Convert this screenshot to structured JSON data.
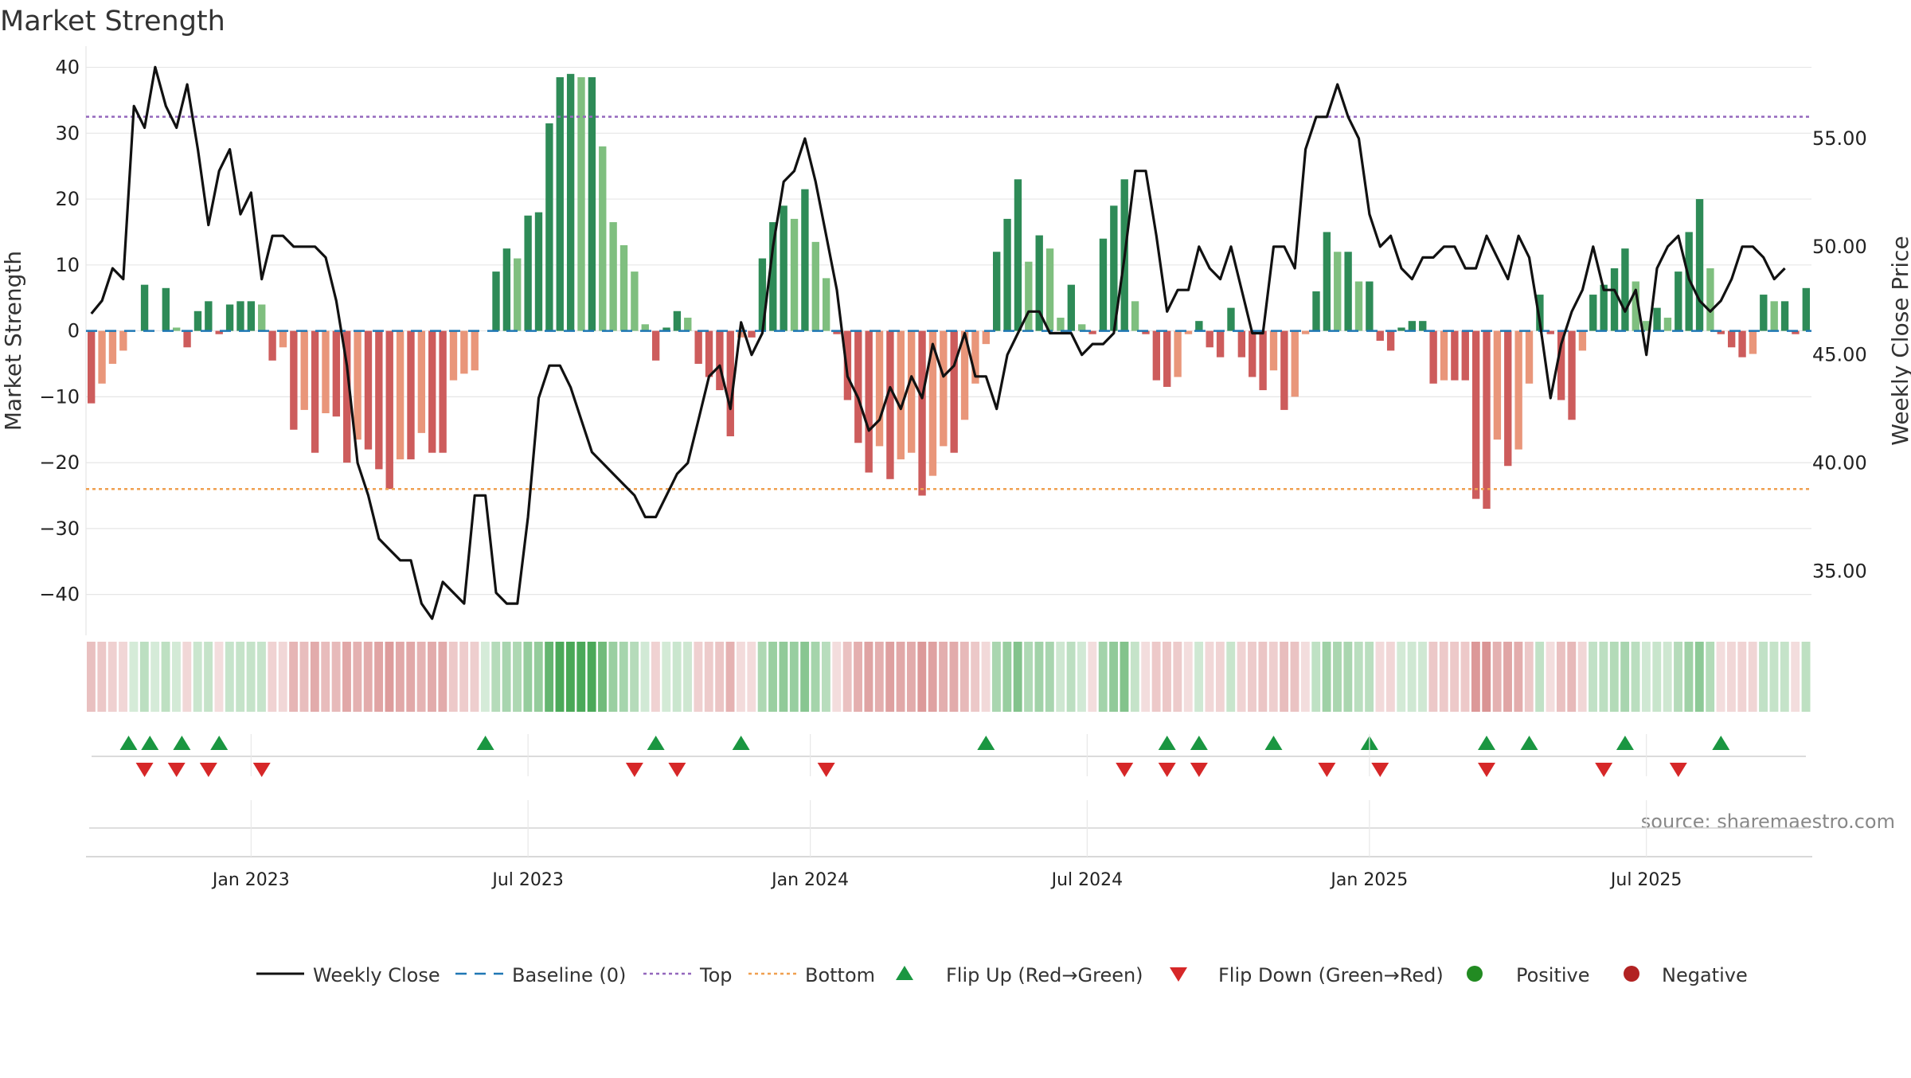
{
  "title": "Market Strength",
  "left_axis_label": "Market Strength",
  "right_axis_label": "Weekly Close Price",
  "source_text": "source: sharemaestro.com",
  "colors": {
    "positive_dark": "#2e8b57",
    "positive_light": "#7fbf7f",
    "negative_dark": "#cd5c5c",
    "negative_light": "#e9967a",
    "close_line": "#111111",
    "baseline": "#1f77b4",
    "top": "#9467bd",
    "bottom": "#f0a050",
    "flip_up": "#1a9641",
    "flip_down": "#d62728",
    "positive_dot": "#228b22",
    "negative_dot": "#b22222",
    "grid": "#e6e6e6",
    "tick": "#222222",
    "source": "#888888"
  },
  "legend": [
    {
      "label": "Weekly Close",
      "kind": "line"
    },
    {
      "label": "Baseline (0)",
      "kind": "dash"
    },
    {
      "label": "Top",
      "kind": "dot-purple"
    },
    {
      "label": "Bottom",
      "kind": "dot-orange"
    },
    {
      "label": "Flip Up (Red→Green)",
      "kind": "tri-up"
    },
    {
      "label": "Flip Down (Green→Red)",
      "kind": "tri-down"
    },
    {
      "label": "Positive",
      "kind": "circle-green"
    },
    {
      "label": "Negative",
      "kind": "circle-red"
    }
  ],
  "chart_data": {
    "type": "bar+line",
    "frequency": "weekly",
    "start_date": "2022-09-19",
    "strength_ylim": [
      -45,
      42
    ],
    "strength_ticks": [
      40,
      30,
      20,
      10,
      0,
      -10,
      -20,
      -30,
      -40
    ],
    "strength_tick_labels": [
      "40",
      "30",
      "20",
      "10",
      "0",
      "−10",
      "−20",
      "−30",
      "−40"
    ],
    "price_ylim": [
      32.4,
      58.9
    ],
    "price_ticks": [
      55,
      50,
      45,
      40,
      35
    ],
    "price_tick_labels": [
      "55.00",
      "50.00",
      "45.00",
      "40.00",
      "35.00"
    ],
    "top_level": 32.5,
    "bottom_level": -24,
    "x_tick_labels": [
      "Jan 2023",
      "Jul 2023",
      "Jan 2024",
      "Jul 2024",
      "Jan 2025",
      "Jul 2025"
    ],
    "x_tick_weeks": [
      15,
      41,
      67.5,
      93.5,
      120,
      146
    ],
    "strength": [
      -11,
      -8,
      -5,
      -3,
      0,
      7,
      0,
      6.5,
      0.5,
      -2.5,
      3,
      4.5,
      -0.5,
      4,
      4.5,
      4.5,
      4,
      -4.5,
      -2.5,
      -15,
      -12,
      -18.5,
      -12.5,
      -13,
      -20,
      -16.5,
      -18,
      -21,
      -24,
      -19.5,
      -19.5,
      -15.5,
      -18.5,
      -18.5,
      -7.5,
      -6.5,
      -6,
      0,
      9,
      12.5,
      11,
      17.5,
      18,
      31.5,
      38.5,
      39,
      38.5,
      38.5,
      28,
      16.5,
      13,
      9,
      1,
      -4.5,
      0.5,
      3,
      2,
      -5,
      -7,
      -9,
      -16,
      -1,
      -1,
      11,
      16.5,
      19,
      17,
      21.5,
      13.5,
      8,
      -0.5,
      -10.5,
      -17,
      -21.5,
      -17.5,
      -22.5,
      -19.5,
      -18.5,
      -25,
      -22,
      -17.5,
      -18.5,
      -13.5,
      -8,
      -2,
      12,
      17,
      23,
      10.5,
      14.5,
      12.5,
      2,
      7,
      1,
      -0.5,
      14,
      19,
      23,
      4.5,
      -0.5,
      -7.5,
      -8.5,
      -7,
      -0.5,
      1.5,
      -2.5,
      -4,
      3.5,
      -4,
      -7,
      -9,
      -6,
      -12,
      -10,
      -0.5,
      6,
      15,
      12,
      12,
      7.5,
      7.5,
      -1.5,
      -3,
      0.5,
      1.5,
      1.5,
      -8,
      -7.5,
      -7.5,
      -7.5,
      -25.5,
      -27,
      -16.5,
      -20.5,
      -18,
      -8,
      5.5,
      -0.5,
      -10.5,
      -13.5,
      -3,
      5.5,
      7,
      9.5,
      12.5,
      7.5,
      1.5,
      3.5,
      2,
      9,
      15,
      20,
      9.5,
      -0.5,
      -2.5,
      -4,
      -3.5,
      5.5,
      4.5,
      4.5,
      -0.5,
      6.5
    ],
    "weekly_close": [
      46.9,
      47.5,
      49,
      48.5,
      56.5,
      55.5,
      58.3,
      56.5,
      55.5,
      57.5,
      54.5,
      51,
      53.5,
      54.5,
      51.5,
      52.5,
      48.5,
      50.5,
      50.5,
      50,
      50,
      50,
      49.5,
      47.5,
      44.5,
      40,
      38.5,
      36.5,
      36,
      35.5,
      35.5,
      33.5,
      32.8,
      34.5,
      34,
      33.5,
      38.5,
      38.5,
      34,
      33.5,
      33.5,
      37.5,
      43,
      44.5,
      44.5,
      43.5,
      42,
      40.5,
      40,
      39.5,
      39,
      38.5,
      37.5,
      37.5,
      38.5,
      39.5,
      40,
      42,
      44,
      44.5,
      42.5,
      46.5,
      45,
      46,
      50,
      53,
      53.5,
      55,
      53,
      50.5,
      48,
      44,
      43,
      41.5,
      42,
      43.5,
      42.5,
      44,
      43,
      45.5,
      44,
      44.5,
      46,
      44,
      44,
      42.5,
      45,
      46,
      47,
      47,
      46,
      46,
      46,
      45,
      45.5,
      45.5,
      46,
      49.5,
      53.5,
      53.5,
      50.5,
      47,
      48,
      48,
      50,
      49,
      48.5,
      50,
      48,
      46,
      46,
      50,
      50,
      49,
      54.5,
      56,
      56,
      57.5,
      56,
      55,
      51.5,
      50,
      50.5,
      49,
      48.5,
      49.5,
      49.5,
      50,
      50,
      49,
      49,
      50.5,
      49.5,
      48.5,
      50.5,
      49.5,
      46.5,
      43,
      45.5,
      47,
      48,
      50,
      48,
      48,
      47,
      48,
      45,
      49,
      50,
      50.5,
      48.5,
      47.5,
      47,
      47.5,
      48.5,
      50,
      50,
      49.5,
      48.5,
      49
    ]
  },
  "flip_up_weeks": [
    3.5,
    5.5,
    8.5,
    12,
    37,
    53,
    61,
    84,
    101,
    104,
    111,
    120,
    131,
    135,
    144,
    153
  ],
  "flip_down_weeks": [
    5,
    8,
    11,
    16,
    51,
    55,
    69,
    97,
    101,
    104,
    116,
    121,
    131,
    142,
    149
  ]
}
